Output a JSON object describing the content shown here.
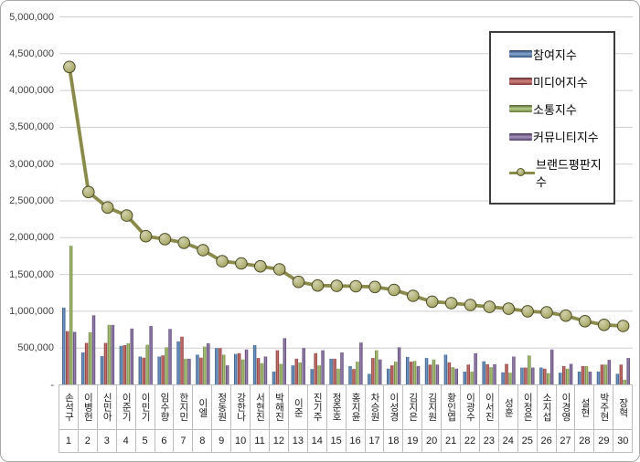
{
  "chart_data": {
    "type": "bar",
    "subtype": "grouped-bars-with-line-overlay",
    "title": "",
    "categories": [
      "손석구",
      "이병헌",
      "신민아",
      "이준기",
      "이민기",
      "임수향",
      "한지민",
      "이엘",
      "정동원",
      "강한나",
      "서현진",
      "박해진",
      "이준",
      "진기주",
      "정준호",
      "홍지윤",
      "차승원",
      "이성경",
      "김지은",
      "김지원",
      "황인엽",
      "이광수",
      "이서진",
      "성훈",
      "이정은",
      "소지섭",
      "이경영",
      "설현",
      "박주현",
      "장혁"
    ],
    "ranks": [
      "1",
      "2",
      "3",
      "4",
      "5",
      "6",
      "7",
      "8",
      "9",
      "10",
      "11",
      "12",
      "13",
      "14",
      "15",
      "16",
      "17",
      "18",
      "19",
      "20",
      "21",
      "22",
      "23",
      "24",
      "25",
      "26",
      "27",
      "28",
      "29",
      "30"
    ],
    "y_axis": {
      "min": 0,
      "max": 5000000,
      "tick_step": 500000,
      "grid": true,
      "ticks": [
        "5,000,000",
        "4,500,000",
        "4,000,000",
        "3,500,000",
        "3,000,000",
        "2,500,000",
        "2,000,000",
        "1,500,000",
        "1,000,000",
        "500,000",
        "-"
      ]
    },
    "bar_series": [
      {
        "key": "participation",
        "name": "참여지수",
        "color": "#4F81BD",
        "values": [
          1050000,
          440000,
          390000,
          530000,
          385000,
          385000,
          590000,
          410000,
          500000,
          420000,
          540000,
          180000,
          265000,
          215000,
          355000,
          255000,
          150000,
          220000,
          380000,
          365000,
          410000,
          180000,
          320000,
          170000,
          235000,
          235000,
          165000,
          180000,
          180000,
          150000
        ]
      },
      {
        "key": "media",
        "name": "미디어지수",
        "color": "#C0504D",
        "values": [
          730000,
          570000,
          570000,
          540000,
          370000,
          400000,
          655000,
          370000,
          500000,
          430000,
          365000,
          470000,
          355000,
          430000,
          355000,
          215000,
          365000,
          265000,
          315000,
          275000,
          305000,
          275000,
          280000,
          285000,
          235000,
          220000,
          255000,
          255000,
          275000,
          275000
        ]
      },
      {
        "key": "communication",
        "name": "소통지수",
        "color": "#9BBB59",
        "values": [
          1890000,
          715000,
          815000,
          565000,
          545000,
          510000,
          355000,
          520000,
          410000,
          345000,
          295000,
          285000,
          305000,
          265000,
          220000,
          315000,
          470000,
          315000,
          325000,
          345000,
          240000,
          180000,
          240000,
          165000,
          400000,
          160000,
          220000,
          255000,
          275000,
          70000
        ]
      },
      {
        "key": "community",
        "name": "커뮤니티지수",
        "color": "#8064A2",
        "values": [
          720000,
          945000,
          815000,
          765000,
          800000,
          760000,
          355000,
          565000,
          265000,
          480000,
          385000,
          635000,
          500000,
          470000,
          440000,
          575000,
          345000,
          510000,
          255000,
          275000,
          220000,
          430000,
          280000,
          385000,
          235000,
          480000,
          285000,
          180000,
          340000,
          365000
        ]
      }
    ],
    "line_series": {
      "key": "brand-reputation",
      "name": "브랜드평판지수",
      "color": "#8A8B4A",
      "marker_fill": "#ABAC6B",
      "values": [
        4320000,
        2620000,
        2410000,
        2300000,
        2020000,
        1980000,
        1930000,
        1830000,
        1680000,
        1650000,
        1610000,
        1570000,
        1400000,
        1350000,
        1345000,
        1340000,
        1330000,
        1290000,
        1210000,
        1130000,
        1110000,
        1085000,
        1060000,
        1035000,
        1000000,
        985000,
        940000,
        865000,
        815000,
        800000
      ]
    },
    "legend": {
      "position": "top-right",
      "border": "#3d3d3d",
      "background": "#ffffff"
    }
  }
}
